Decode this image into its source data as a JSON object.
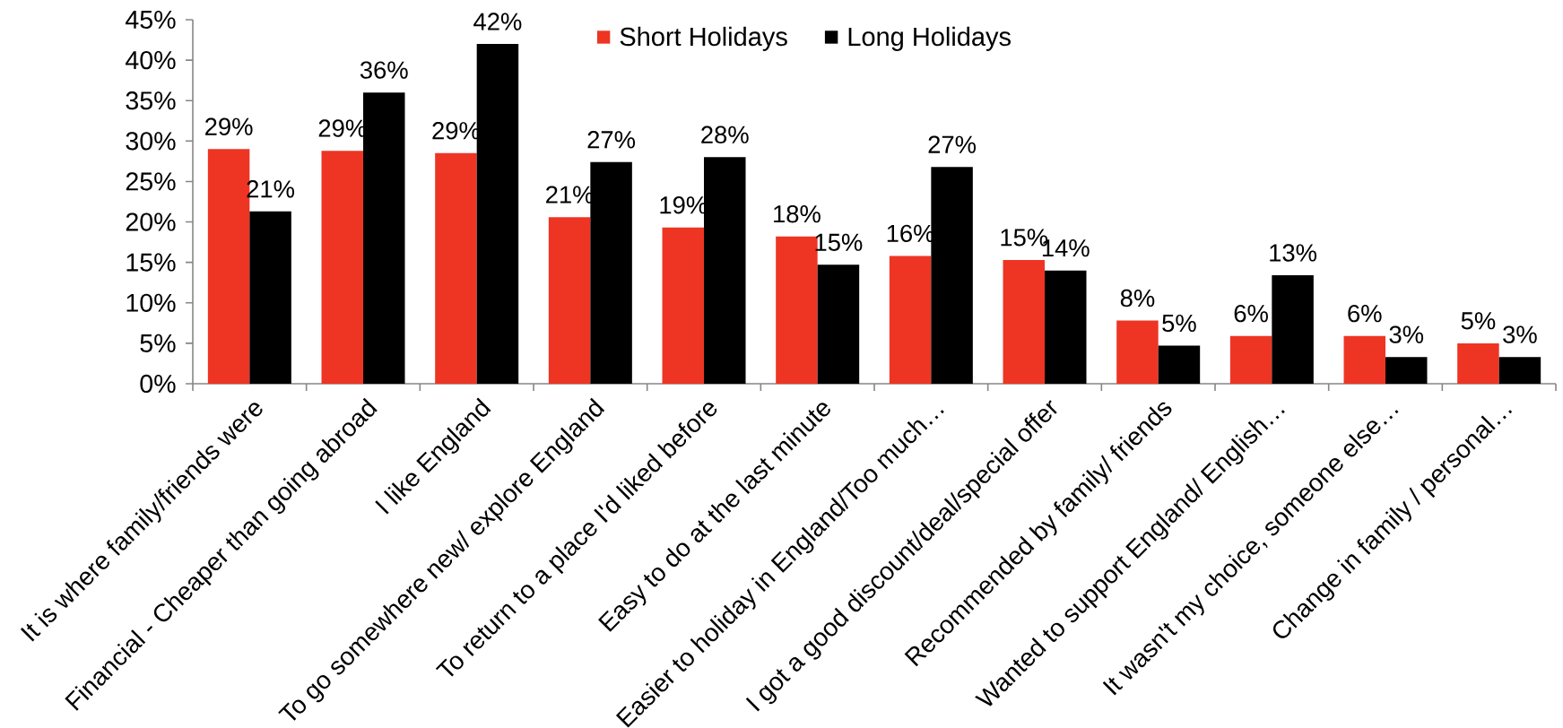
{
  "chart_data": {
    "type": "bar",
    "categories": [
      "It is where family/friends were",
      "Financial - Cheaper than going abroad",
      "I like England",
      "To go somewhere new/ explore England",
      "To return to a place I'd liked before",
      "Easy to do at the last minute",
      "Easier to holiday in England/Too much…",
      "I got a good discount/deal/special offer",
      "Recommended by family/ friends",
      "Wanted to support England/ English…",
      "It wasn't my choice, someone else…",
      "Change in family / personal…"
    ],
    "series": [
      {
        "name": "Short Holidays",
        "color": "#ee3524",
        "values": [
          29.0,
          28.8,
          28.5,
          20.6,
          19.3,
          18.2,
          15.8,
          15.3,
          7.8,
          5.9,
          5.9,
          5.0
        ],
        "value_labels": [
          "29%",
          "29%",
          "29%",
          "21%",
          "19%",
          "18%",
          "16%",
          "15%",
          "8%",
          "6%",
          "6%",
          "5%"
        ]
      },
      {
        "name": "Long Holidays",
        "color": "#000000",
        "values": [
          21.3,
          36.0,
          42.0,
          27.4,
          28.0,
          14.7,
          26.8,
          14.0,
          4.7,
          13.4,
          3.3,
          3.3
        ],
        "value_labels": [
          "21%",
          "36%",
          "42%",
          "27%",
          "28%",
          "15%",
          "27%",
          "14%",
          "5%",
          "13%",
          "3%",
          "3%"
        ]
      }
    ],
    "ylim": [
      0,
      45
    ],
    "yticks": [
      {
        "value": 0,
        "label": "0%"
      },
      {
        "value": 5,
        "label": "5%"
      },
      {
        "value": 10,
        "label": "10%"
      },
      {
        "value": 15,
        "label": "15%"
      },
      {
        "value": 20,
        "label": "20%"
      },
      {
        "value": 25,
        "label": "25%"
      },
      {
        "value": 30,
        "label": "30%"
      },
      {
        "value": 35,
        "label": "35%"
      },
      {
        "value": 40,
        "label": "40%"
      },
      {
        "value": 45,
        "label": "45%"
      }
    ],
    "legend": "top"
  }
}
